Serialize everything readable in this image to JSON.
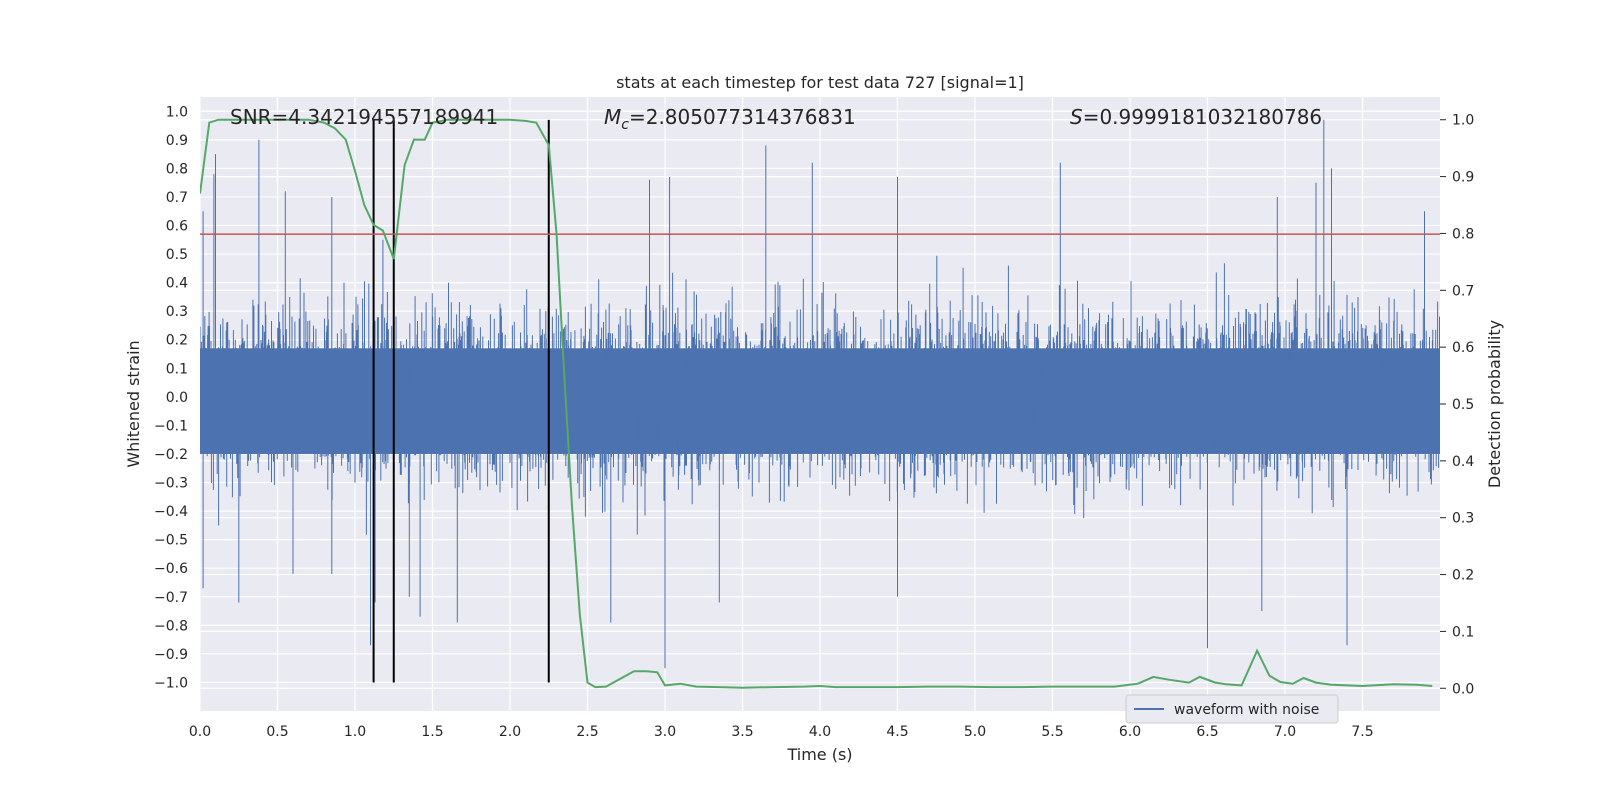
{
  "chart_data": {
    "type": "line",
    "title": "stats at each timestep for test data 727 [signal=1]",
    "xlabel": "Time (s)",
    "ylabel": "Whitened strain",
    "y2label": "Detection probability",
    "xlim": [
      0.0,
      8.0
    ],
    "ylim": [
      -1.1,
      1.05
    ],
    "y2lim": [
      -0.04,
      1.04
    ],
    "xticks": [
      0.0,
      0.5,
      1.0,
      1.5,
      2.0,
      2.5,
      3.0,
      3.5,
      4.0,
      4.5,
      5.0,
      5.5,
      6.0,
      6.5,
      7.0,
      7.5
    ],
    "xtick_labels": [
      "0.0",
      "0.5",
      "1.0",
      "1.5",
      "2.0",
      "2.5",
      "3.0",
      "3.5",
      "4.0",
      "4.5",
      "5.0",
      "5.5",
      "6.0",
      "6.5",
      "7.0",
      "7.5"
    ],
    "yticks": [
      -1.0,
      -0.9,
      -0.8,
      -0.7,
      -0.6,
      -0.5,
      -0.4,
      -0.3,
      -0.2,
      -0.1,
      0.0,
      0.1,
      0.2,
      0.3,
      0.4,
      0.5,
      0.6,
      0.7,
      0.8,
      0.9,
      1.0
    ],
    "ytick_labels": [
      "−1.0",
      "−0.9",
      "−0.8",
      "−0.7",
      "−0.6",
      "−0.5",
      "−0.4",
      "−0.3",
      "−0.2",
      "−0.1",
      "0.0",
      "0.1",
      "0.2",
      "0.3",
      "0.4",
      "0.5",
      "0.6",
      "0.7",
      "0.8",
      "0.9",
      "1.0"
    ],
    "y2ticks": [
      0.0,
      0.1,
      0.2,
      0.3,
      0.4,
      0.5,
      0.6,
      0.7,
      0.8,
      0.9,
      1.0
    ],
    "y2tick_labels": [
      "0.0",
      "0.1",
      "0.2",
      "0.3",
      "0.4",
      "0.5",
      "0.6",
      "0.7",
      "0.8",
      "0.9",
      "1.0"
    ],
    "grid": true,
    "annotations": {
      "snr": "SNR=4.342194557189941",
      "mc_symbol": "M",
      "mc_subscript": "c",
      "mc_value": "=2.805077314376831",
      "s_symbol": "S",
      "s_value": "=0.9999181032180786"
    },
    "legend": {
      "position": "lower-right",
      "entries": [
        "waveform with noise"
      ]
    },
    "series": [
      {
        "name": "waveform with noise",
        "axis": "left",
        "color": "#4c72b0",
        "style": "dense noise",
        "typical_envelope": [
          -0.42,
          0.45
        ],
        "peaks": [
          {
            "x": 0.02,
            "y": 0.65
          },
          {
            "x": 0.09,
            "y": 0.78
          },
          {
            "x": 0.1,
            "y": 0.85
          },
          {
            "x": 0.38,
            "y": 0.9
          },
          {
            "x": 0.55,
            "y": 0.72
          },
          {
            "x": 0.85,
            "y": 0.7
          },
          {
            "x": 1.18,
            "y": 0.55
          },
          {
            "x": 2.9,
            "y": 0.76
          },
          {
            "x": 3.03,
            "y": 0.77
          },
          {
            "x": 3.65,
            "y": 0.88
          },
          {
            "x": 3.95,
            "y": 0.82
          },
          {
            "x": 4.5,
            "y": 0.77
          },
          {
            "x": 5.55,
            "y": 0.82
          },
          {
            "x": 6.95,
            "y": 0.7
          },
          {
            "x": 7.2,
            "y": 0.75
          },
          {
            "x": 7.25,
            "y": 0.97
          },
          {
            "x": 7.3,
            "y": 0.8
          },
          {
            "x": 7.9,
            "y": 0.65
          }
        ],
        "troughs": [
          {
            "x": 0.02,
            "y": -0.67
          },
          {
            "x": 0.25,
            "y": -0.72
          },
          {
            "x": 0.6,
            "y": -0.62
          },
          {
            "x": 0.85,
            "y": -0.62
          },
          {
            "x": 1.1,
            "y": -0.87
          },
          {
            "x": 1.13,
            "y": -0.72
          },
          {
            "x": 1.35,
            "y": -0.7
          },
          {
            "x": 1.42,
            "y": -0.77
          },
          {
            "x": 1.66,
            "y": -0.79
          },
          {
            "x": 2.65,
            "y": -0.79
          },
          {
            "x": 3.0,
            "y": -0.95
          },
          {
            "x": 3.35,
            "y": -0.72
          },
          {
            "x": 4.5,
            "y": -0.7
          },
          {
            "x": 6.5,
            "y": -0.88
          },
          {
            "x": 6.85,
            "y": -0.75
          },
          {
            "x": 7.4,
            "y": -0.87
          }
        ]
      },
      {
        "name": "detection probability",
        "axis": "right",
        "color": "#55a868",
        "x": [
          0.0,
          0.06,
          0.12,
          0.2,
          0.3,
          0.4,
          0.5,
          0.6,
          0.7,
          0.8,
          0.87,
          0.94,
          1.0,
          1.06,
          1.12,
          1.18,
          1.25,
          1.32,
          1.38,
          1.45,
          1.5,
          1.6,
          1.7,
          1.8,
          1.9,
          2.0,
          2.1,
          2.17,
          2.25,
          2.3,
          2.35,
          2.4,
          2.45,
          2.5,
          2.55,
          2.62,
          2.7,
          2.8,
          2.88,
          2.95,
          3.0,
          3.1,
          3.2,
          3.35,
          3.5,
          3.7,
          3.9,
          4.0,
          4.1,
          4.3,
          4.5,
          4.7,
          4.9,
          5.1,
          5.3,
          5.5,
          5.7,
          5.9,
          6.05,
          6.15,
          6.25,
          6.38,
          6.45,
          6.55,
          6.62,
          6.72,
          6.82,
          6.9,
          6.97,
          7.05,
          7.12,
          7.2,
          7.3,
          7.5,
          7.7,
          7.85,
          7.95
        ],
        "values": [
          0.87,
          0.995,
          1.0,
          1.0,
          1.0,
          1.0,
          1.0,
          1.0,
          1.0,
          0.995,
          0.985,
          0.965,
          0.91,
          0.85,
          0.815,
          0.805,
          0.755,
          0.92,
          0.965,
          0.965,
          0.995,
          1.0,
          1.0,
          1.0,
          1.0,
          1.0,
          0.998,
          0.995,
          0.955,
          0.8,
          0.55,
          0.32,
          0.13,
          0.01,
          0.002,
          0.003,
          0.015,
          0.03,
          0.03,
          0.028,
          0.005,
          0.008,
          0.003,
          0.002,
          0.001,
          0.002,
          0.003,
          0.004,
          0.002,
          0.002,
          0.002,
          0.003,
          0.003,
          0.002,
          0.002,
          0.003,
          0.003,
          0.003,
          0.008,
          0.02,
          0.015,
          0.01,
          0.02,
          0.01,
          0.007,
          0.005,
          0.066,
          0.022,
          0.011,
          0.008,
          0.018,
          0.01,
          0.006,
          0.004,
          0.007,
          0.006,
          0.004
        ]
      }
    ],
    "threshold_line": {
      "axis": "left",
      "y": 0.57,
      "color": "#c44e52"
    },
    "vertical_markers": {
      "x": [
        1.12,
        1.25,
        2.25
      ],
      "y_range": [
        -1.0,
        0.97
      ],
      "color": "#000000"
    }
  }
}
